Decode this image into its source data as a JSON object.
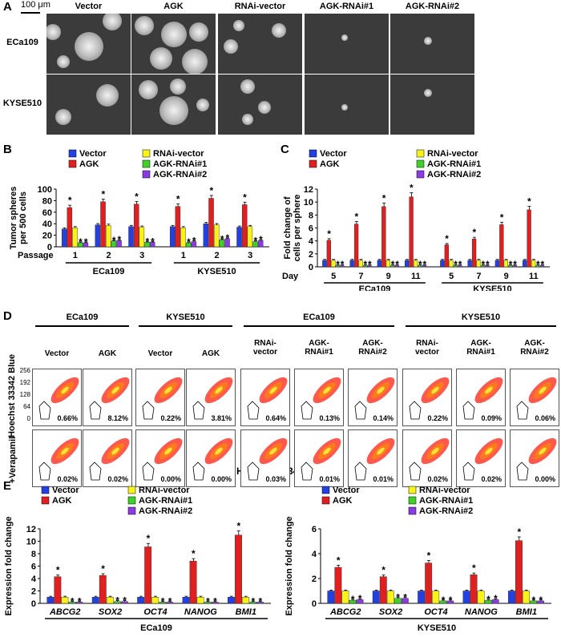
{
  "panelA": {
    "letter": "A",
    "scale": "100 μm",
    "columns": [
      "Vector",
      "AGK",
      "RNAi-vector",
      "AGK-RNAi#1",
      "AGK-RNAi#2"
    ],
    "rows": [
      "ECa109",
      "KYSE510"
    ]
  },
  "panelB": {
    "letter": "B",
    "legend": [
      "Vector",
      "AGK",
      "RNAi-vector",
      "AGK-RNAi#1",
      "AGK-RNAi#2"
    ],
    "xprefix": "Passage",
    "groups": [
      "ECa109",
      "KYSE510"
    ]
  },
  "panelC": {
    "letter": "C",
    "legend": [
      "Vector",
      "AGK",
      "RNAi-vector",
      "AGK-RNAi#1",
      "AGK-RNAi#2"
    ],
    "xprefix": "Day",
    "groups": [
      "ECa109",
      "KYSE510"
    ]
  },
  "panelD": {
    "letter": "D",
    "groups": [
      "ECa109",
      "KYSE510",
      "ECa109",
      "KYSE510"
    ],
    "columns": [
      "Vector",
      "AGK",
      "Vector",
      "AGK",
      "RNAi-\nvector",
      "AGK-\nRNAi#1",
      "AGK-\nRNAi#2",
      "RNAi-\nvector",
      "AGK-\nRNAi#1",
      "AGK-\nRNAi#2"
    ],
    "row_labels": [
      "Hoechst 33342 Blue",
      "+Verapamil"
    ],
    "xlabel": "Hoechst 33342 Red",
    "yticks": [
      "256",
      "192",
      "128",
      "64",
      "0"
    ],
    "top_pct": [
      "0.66%",
      "8.12%",
      "0.22%",
      "3.81%",
      "0.64%",
      "0.13%",
      "0.14%",
      "0.22%",
      "0.09%",
      "0.06%"
    ],
    "bottom_pct": [
      "0.02%",
      "0.02%",
      "0.00%",
      "0.00%",
      "0.03%",
      "0.01%",
      "0.01%",
      "0.02%",
      "0.02%",
      "0.00%"
    ]
  },
  "panelE": {
    "letter": "E",
    "legend": [
      "Vector",
      "AGK",
      "RNAi-vector",
      "AGK-RNAi#1",
      "AGK-RNAi#2"
    ],
    "groups": [
      "ECa109",
      "KYSE510"
    ]
  },
  "colors": {
    "Vector": "#2341e0",
    "AGK": "#e02020",
    "RNAi-vector": "#f6f21a",
    "AGK-RNAi#1": "#3fd12a",
    "AGK-RNAi#2": "#8a3ce0"
  },
  "chart_data": [
    {
      "type": "bar",
      "panel": "B",
      "ylabel": "Tumor spheres\nper 500 cells",
      "xlabel": "Passage",
      "ylim": [
        0,
        100
      ],
      "yticks": [
        0,
        20,
        40,
        60,
        80,
        100
      ],
      "categories": [
        "1",
        "2",
        "3",
        "1",
        "2",
        "3"
      ],
      "category_groups": [
        "ECa109",
        "ECa109",
        "ECa109",
        "KYSE510",
        "KYSE510",
        "KYSE510"
      ],
      "series": [
        {
          "name": "Vector",
          "values": [
            31,
            38,
            35,
            35,
            40,
            34
          ]
        },
        {
          "name": "AGK",
          "values": [
            68,
            78,
            74,
            70,
            84,
            73
          ]
        },
        {
          "name": "RNAi-vector",
          "values": [
            33,
            37,
            34,
            33,
            38,
            35
          ]
        },
        {
          "name": "AGK-RNAi#1",
          "values": [
            7,
            10,
            8,
            7,
            12,
            9
          ]
        },
        {
          "name": "AGK-RNAi#2",
          "values": [
            7,
            11,
            8,
            9,
            14,
            11
          ]
        }
      ],
      "significance": [
        "AGK",
        "AGK-RNAi#1",
        "AGK-RNAi#2"
      ]
    },
    {
      "type": "bar",
      "panel": "C",
      "ylabel": "Fold change of\ncells per sphere",
      "xlabel": "Day",
      "ylim": [
        0,
        12
      ],
      "yticks": [
        0,
        2,
        4,
        6,
        8,
        10,
        12
      ],
      "categories": [
        "5",
        "7",
        "9",
        "11",
        "5",
        "7",
        "9",
        "11"
      ],
      "category_groups": [
        "ECa109",
        "ECa109",
        "ECa109",
        "ECa109",
        "KYSE510",
        "KYSE510",
        "KYSE510",
        "KYSE510"
      ],
      "series": [
        {
          "name": "Vector",
          "values": [
            1,
            1,
            1,
            1,
            1,
            1,
            1,
            1
          ]
        },
        {
          "name": "AGK",
          "values": [
            4.1,
            6.6,
            9.3,
            10.8,
            3.4,
            4.3,
            6.5,
            8.8
          ]
        },
        {
          "name": "RNAi-vector",
          "values": [
            1,
            1,
            1,
            1,
            1,
            1,
            1,
            1
          ]
        },
        {
          "name": "AGK-RNAi#1",
          "values": [
            0.2,
            0.2,
            0.2,
            0.2,
            0.2,
            0.2,
            0.2,
            0.2
          ]
        },
        {
          "name": "AGK-RNAi#2",
          "values": [
            0.2,
            0.2,
            0.2,
            0.2,
            0.2,
            0.2,
            0.2,
            0.2
          ]
        }
      ],
      "significance": [
        "AGK",
        "AGK-RNAi#1",
        "AGK-RNAi#2"
      ]
    },
    {
      "type": "bar",
      "panel": "E-ECa109",
      "ylabel": "Expression fold change",
      "ylim": [
        0,
        12
      ],
      "yticks": [
        0,
        2,
        4,
        6,
        8,
        10,
        12
      ],
      "categories": [
        "ABCG2",
        "SOX2",
        "OCT4",
        "NANOG",
        "BMI1"
      ],
      "group": "ECa109",
      "series": [
        {
          "name": "Vector",
          "values": [
            1,
            1,
            1,
            1,
            1
          ]
        },
        {
          "name": "AGK",
          "values": [
            4.3,
            4.5,
            9.1,
            6.8,
            11
          ]
        },
        {
          "name": "RNAi-vector",
          "values": [
            1,
            1,
            1,
            1,
            1
          ]
        },
        {
          "name": "AGK-RNAi#1",
          "values": [
            0.2,
            0.3,
            0.2,
            0.2,
            0.2
          ]
        },
        {
          "name": "AGK-RNAi#2",
          "values": [
            0.2,
            0.3,
            0.2,
            0.2,
            0.2
          ]
        }
      ],
      "significance": [
        "AGK",
        "AGK-RNAi#1",
        "AGK-RNAi#2"
      ]
    },
    {
      "type": "bar",
      "panel": "E-KYSE510",
      "ylabel": "Expression fold change",
      "ylim": [
        0,
        6
      ],
      "yticks": [
        0,
        2,
        4,
        6
      ],
      "categories": [
        "ABCG2",
        "SOX2",
        "OCT4",
        "NANOG",
        "BMI1"
      ],
      "group": "KYSE510",
      "series": [
        {
          "name": "Vector",
          "values": [
            1,
            1,
            1,
            1,
            1
          ]
        },
        {
          "name": "AGK",
          "values": [
            2.9,
            2.15,
            3.25,
            2.3,
            5.05
          ]
        },
        {
          "name": "RNAi-vector",
          "values": [
            1,
            1,
            1,
            1,
            1
          ]
        },
        {
          "name": "AGK-RNAi#1",
          "values": [
            0.25,
            0.4,
            0.2,
            0.25,
            0.2
          ]
        },
        {
          "name": "AGK-RNAi#2",
          "values": [
            0.3,
            0.4,
            0.2,
            0.3,
            0.2
          ]
        }
      ],
      "significance": [
        "AGK",
        "AGK-RNAi#1",
        "AGK-RNAi#2"
      ]
    }
  ]
}
